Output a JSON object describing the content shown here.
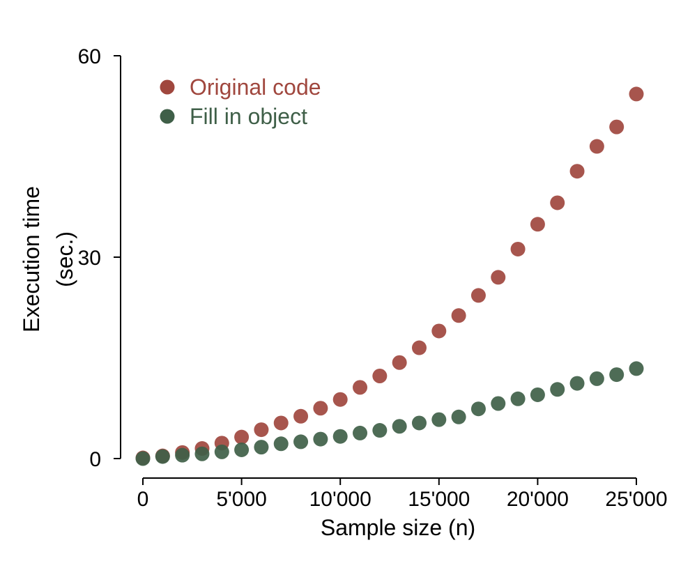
{
  "chart_data": {
    "type": "scatter",
    "title": "",
    "xlabel": "Sample size (n)",
    "ylabel_lines": [
      "Execution time",
      "(sec.)"
    ],
    "xlim": [
      0,
      25000
    ],
    "ylim": [
      0,
      60
    ],
    "xticks": [
      {
        "value": 0,
        "label": "0"
      },
      {
        "value": 5000,
        "label": "5'000"
      },
      {
        "value": 10000,
        "label": "10'000"
      },
      {
        "value": 15000,
        "label": "15'000"
      },
      {
        "value": 20000,
        "label": "20'000"
      },
      {
        "value": 25000,
        "label": "25'000"
      }
    ],
    "yticks": [
      {
        "value": 0,
        "label": "0"
      },
      {
        "value": 30,
        "label": "30"
      },
      {
        "value": 60,
        "label": "60"
      }
    ],
    "grid": false,
    "legend_position": "top-left",
    "x": [
      0,
      1000,
      2000,
      3000,
      4000,
      5000,
      6000,
      7000,
      8000,
      9000,
      10000,
      11000,
      12000,
      13000,
      14000,
      15000,
      16000,
      17000,
      18000,
      19000,
      20000,
      21000,
      22000,
      23000,
      24000,
      25000
    ],
    "series": [
      {
        "name": "Original code",
        "color": "#a0473e",
        "values": [
          0.1,
          0.4,
          0.9,
          1.5,
          2.3,
          3.2,
          4.3,
          5.3,
          6.3,
          7.5,
          8.8,
          10.6,
          12.3,
          14.3,
          16.5,
          19.0,
          21.3,
          24.3,
          27.0,
          31.2,
          34.9,
          38.1,
          42.8,
          46.5,
          49.4,
          54.3
        ]
      },
      {
        "name": "Fill in object",
        "color": "#3f5f48",
        "values": [
          0.0,
          0.3,
          0.5,
          0.7,
          1.0,
          1.3,
          1.7,
          2.2,
          2.5,
          2.9,
          3.3,
          3.8,
          4.2,
          4.8,
          5.3,
          5.8,
          6.2,
          7.4,
          8.2,
          8.9,
          9.5,
          10.3,
          11.2,
          11.9,
          12.5,
          13.4
        ]
      }
    ]
  }
}
